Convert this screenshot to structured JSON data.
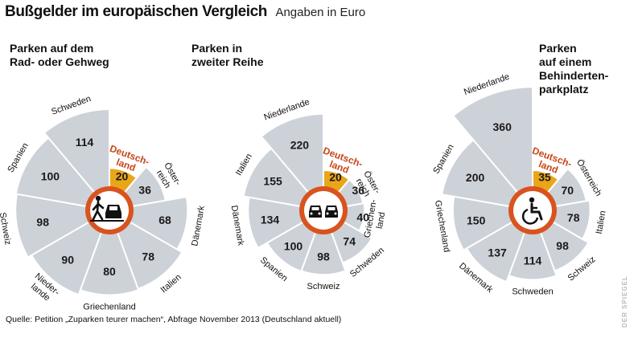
{
  "header": {
    "title": "Bußgelder im europäischen Vergleich",
    "subtitle": "Angaben in Euro"
  },
  "footer": {
    "source": "Quelle: Petition „Zuparken teurer machen“, Abfrage November 2013 (Deutschland aktuell)",
    "credit": "DER SPIEGEL"
  },
  "colors": {
    "wedge": "#cdd1d8",
    "highlight": "#eaa619",
    "highlight_label": "#c8461a",
    "sign_ring": "#d9531e",
    "divider": "#ffffff"
  },
  "chart_data": [
    {
      "type": "polar-area",
      "title": "Parken auf dem\nRad- oder Gehweg",
      "icon": "pedestrian-car-icon",
      "highlight": "Deutschland",
      "categories": [
        "Deutschland",
        "Österreich",
        "Dänemark",
        "Italien",
        "Griechenland",
        "Niederlande",
        "Schweiz",
        "Spanien",
        "Schweden"
      ],
      "labels": [
        "Deutsch-\nland",
        "Öster-\nreich",
        "Dänemark",
        "Italien",
        "Griechenland",
        "Nieder-\nlande",
        "Schweiz",
        "Spanien",
        "Schweden"
      ],
      "values": [
        20,
        36,
        68,
        78,
        80,
        90,
        98,
        100,
        114
      ]
    },
    {
      "type": "polar-area",
      "title": "Parken in\nzweiter Reihe",
      "icon": "double-parking-icon",
      "highlight": "Deutschland",
      "categories": [
        "Deutschland",
        "Österreich",
        "Griechenland",
        "Schweden",
        "Schweiz",
        "Spanien",
        "Dänemark",
        "Italien",
        "Niederlande"
      ],
      "labels": [
        "Deutsch-\nland",
        "Öster-\nreich",
        "Griechen-\nland",
        "Schweden",
        "Schweiz",
        "Spanien",
        "Dänemark",
        "Italien",
        "Niederlande"
      ],
      "values": [
        20,
        36,
        40,
        74,
        98,
        100,
        134,
        155,
        220
      ]
    },
    {
      "type": "polar-area",
      "title": "Parken\nauf einem\nBehinderten-\nparkplatz",
      "icon": "wheelchair-icon",
      "highlight": "Deutschland",
      "categories": [
        "Deutschland",
        "Österreich",
        "Italien",
        "Schweiz",
        "Schweden",
        "Dänemark",
        "Griechenland",
        "Spanien",
        "Niederlande"
      ],
      "labels": [
        "Deutsch-\nland",
        "Österreich",
        "Italien",
        "Schweiz",
        "Schweden",
        "Dänemark",
        "Griechenland",
        "Spanien",
        "Niederlande"
      ],
      "values": [
        35,
        70,
        78,
        98,
        114,
        137,
        150,
        200,
        360
      ]
    }
  ]
}
